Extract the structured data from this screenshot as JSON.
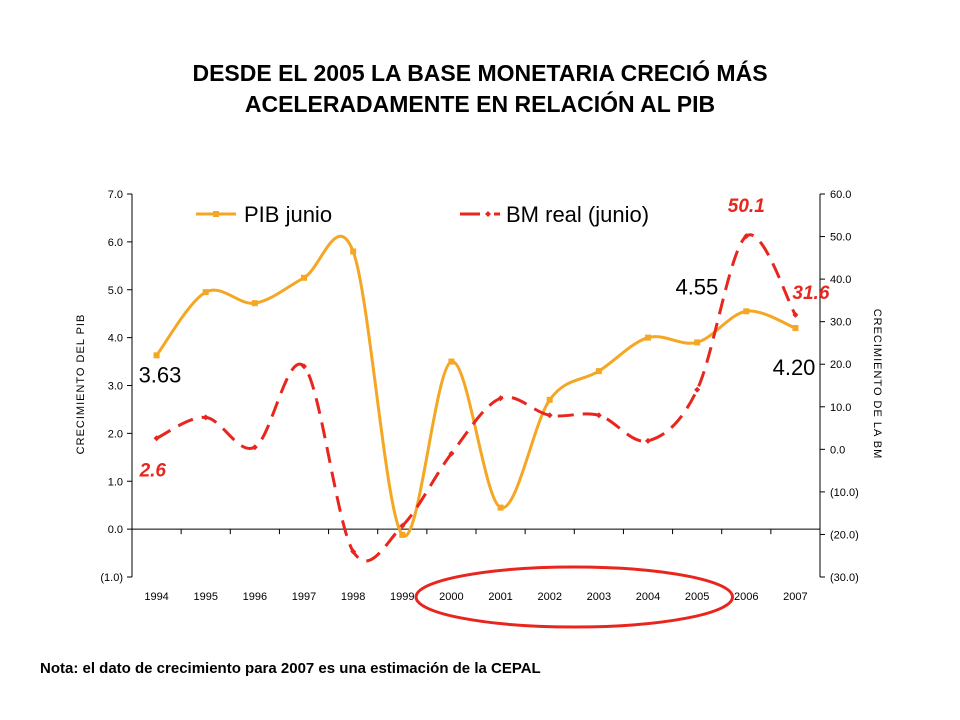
{
  "title_lines": [
    "DESDE EL 2005 LA BASE MONETARIA CRECIÓ MÁS",
    "ACELERADAMENTE EN RELACIÓN AL PIB"
  ],
  "footnote": "Nota: el dato de crecimiento para 2007 es una estimación de la CEPAL",
  "chart_data": {
    "type": "line",
    "categories": [
      "1994",
      "1995",
      "1996",
      "1997",
      "1998",
      "1999",
      "2000",
      "2001",
      "2002",
      "2003",
      "2004",
      "2005",
      "2006",
      "2007"
    ],
    "series": [
      {
        "name": "PIB junio",
        "axis": "left",
        "color": "#f5a623",
        "dash": "solid",
        "values": [
          3.63,
          4.95,
          4.72,
          5.25,
          5.8,
          -0.12,
          3.5,
          0.45,
          2.7,
          3.3,
          4.0,
          3.9,
          4.55,
          4.2
        ]
      },
      {
        "name": "BM real (junio)",
        "axis": "right",
        "color": "#e8261e",
        "dash": "dashed",
        "values": [
          2.6,
          7.5,
          0.5,
          19.5,
          -24.0,
          -18.0,
          -1.0,
          12.0,
          8.0,
          8.0,
          2.0,
          14.0,
          50.1,
          31.6
        ]
      }
    ],
    "ylabel_left": "CRECIMIENTO DEL PIB",
    "ylabel_right": "CRECIMIENTO DE LA BM",
    "ylim_left": [
      -1,
      7
    ],
    "ylim_right": [
      -30,
      60
    ],
    "yticks_left": [
      "(1.0)",
      "0.0",
      "1.0",
      "2.0",
      "3.0",
      "4.0",
      "5.0",
      "6.0",
      "7.0"
    ],
    "yticks_right": [
      "(30.0)",
      "(20.0)",
      "(10.0)",
      "0.0",
      "10.0",
      "20.0",
      "30.0",
      "40.0",
      "50.0",
      "60.0"
    ],
    "data_labels": [
      {
        "series": 0,
        "index": 0,
        "text": "3.63"
      },
      {
        "series": 0,
        "index": 12,
        "text": "4.55"
      },
      {
        "series": 0,
        "index": 13,
        "text": "4.20"
      },
      {
        "series": 1,
        "index": 0,
        "text": "2.6"
      },
      {
        "series": 1,
        "index": 12,
        "text": "50.1"
      },
      {
        "series": 1,
        "index": 13,
        "text": "31.6"
      }
    ],
    "highlight": {
      "shape": "ellipse",
      "color": "#e8261e",
      "from": "2000",
      "to": "2005"
    },
    "grid": false,
    "legend_position": "top"
  }
}
